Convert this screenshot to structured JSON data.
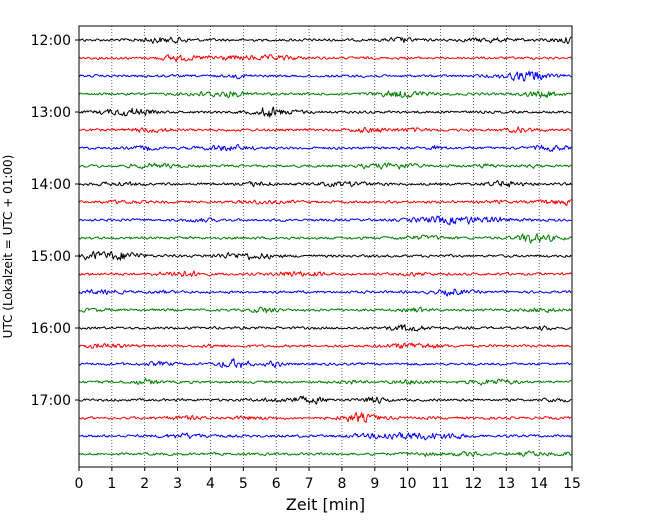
{
  "chart_data": {
    "type": "line",
    "chart_kind": "helicorder seismogram",
    "xlabel": "Zeit  [min]",
    "ylabel": "UTC (Lokalzeit = UTC + 01:00)",
    "xlim": [
      0,
      15
    ],
    "x_ticks": [
      "0",
      "1",
      "2",
      "3",
      "4",
      "5",
      "6",
      "7",
      "8",
      "9",
      "10",
      "11",
      "12",
      "13",
      "14",
      "15"
    ],
    "y_tick_labels": [
      "12:00",
      "13:00",
      "14:00",
      "15:00",
      "16:00",
      "17:00"
    ],
    "grid": "vertical dotted lines at each minute",
    "trace_interval_minutes": 15,
    "trace_start_times": [
      "12:00",
      "12:15",
      "12:30",
      "12:45",
      "13:00",
      "13:15",
      "13:30",
      "13:45",
      "14:00",
      "14:15",
      "14:30",
      "14:45",
      "15:00",
      "15:15",
      "15:30",
      "15:45",
      "16:00",
      "16:15",
      "16:30",
      "16:45",
      "17:00",
      "17:15",
      "17:30",
      "17:45"
    ],
    "trace_color_cycle": [
      "#000000",
      "#ff0000",
      "#0000ff",
      "#008000"
    ]
  }
}
